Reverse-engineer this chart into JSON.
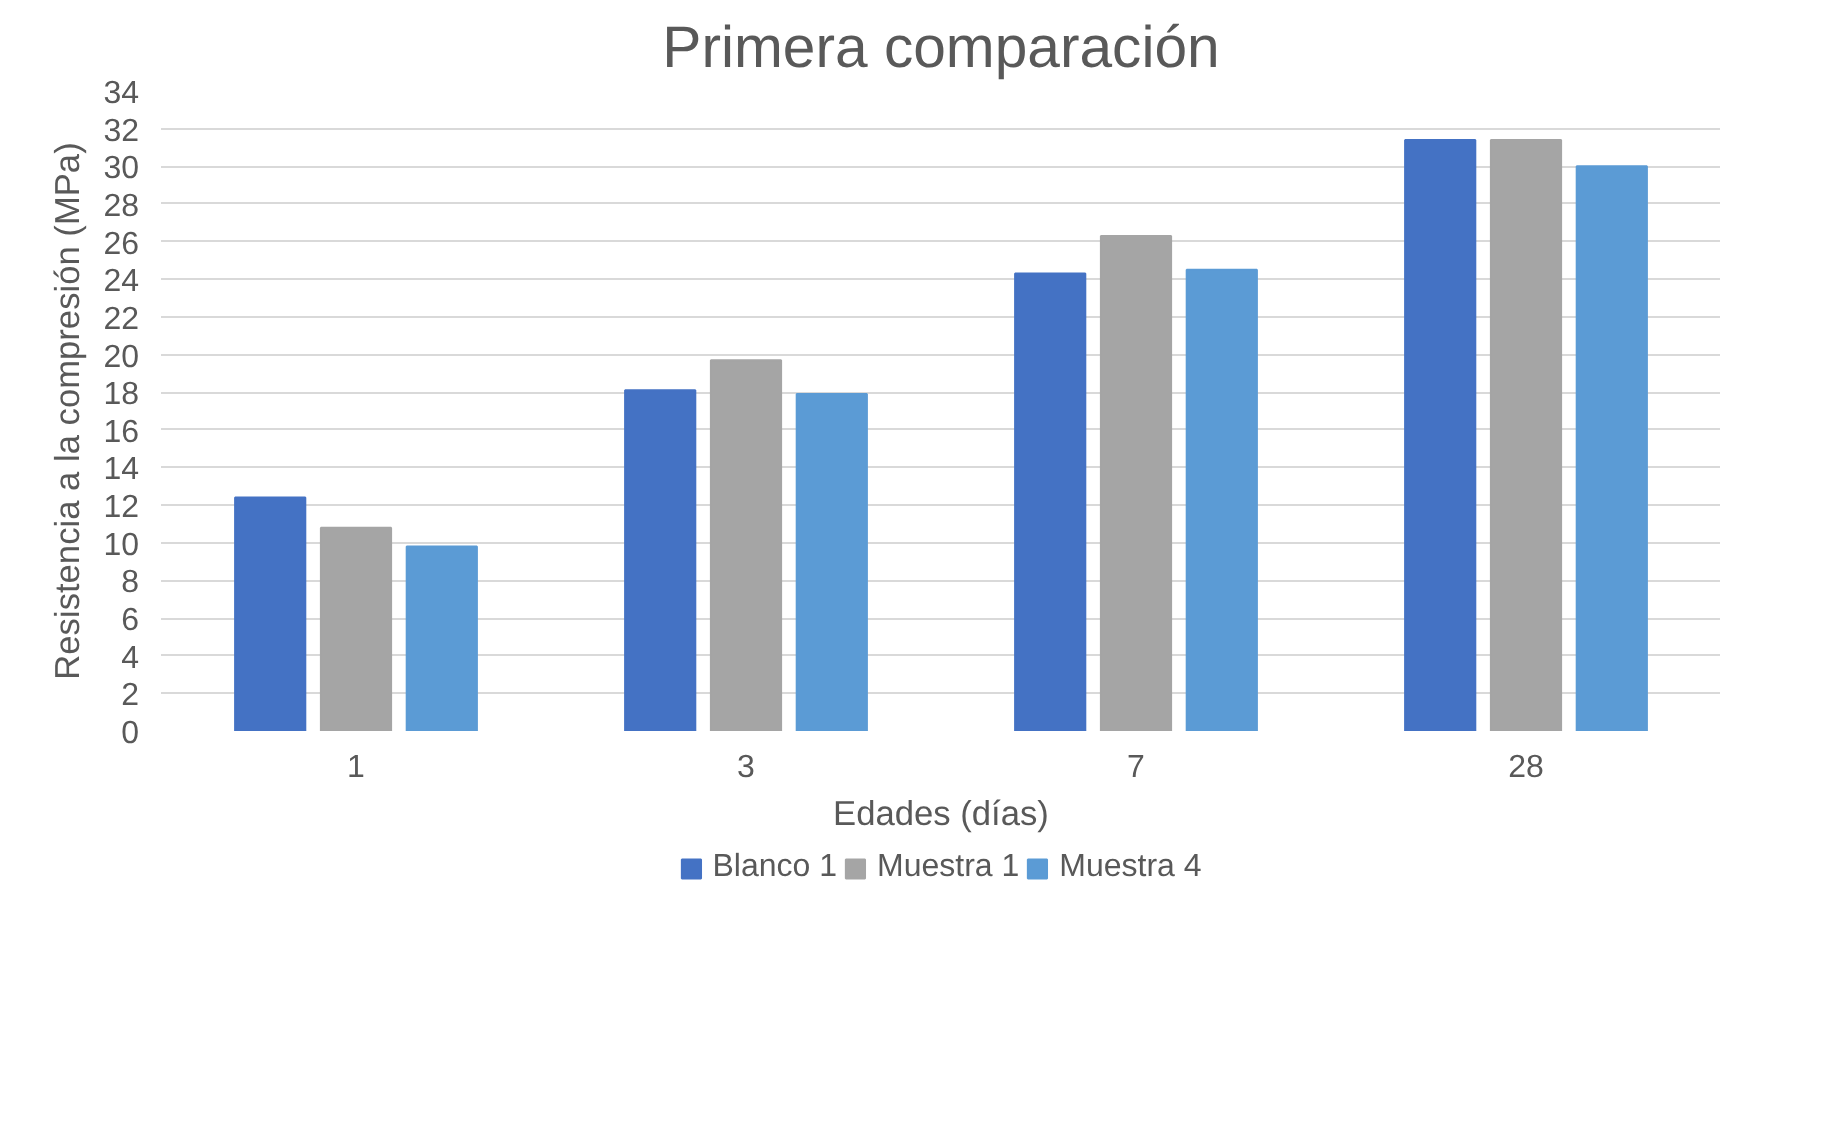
{
  "chart_data": {
    "type": "bar",
    "title": "Primera comparación",
    "xlabel": "Edades (días)",
    "ylabel": "Resistencia a la compresión (MPa)",
    "categories": [
      "1",
      "3",
      "7",
      "28"
    ],
    "series": [
      {
        "name": "Blanco 1",
        "color": "#4472c4",
        "values": [
          12.4,
          18.1,
          24.3,
          31.4
        ]
      },
      {
        "name": "Muestra 1",
        "color": "#a5a5a5",
        "values": [
          10.8,
          19.7,
          26.3,
          31.4
        ]
      },
      {
        "name": "Muestra 4",
        "color": "#5b9bd5",
        "values": [
          9.8,
          17.9,
          24.5,
          30.0
        ]
      }
    ],
    "ylim": [
      0,
      34
    ],
    "yticks": [
      0,
      2,
      4,
      6,
      8,
      10,
      12,
      14,
      16,
      18,
      20,
      22,
      24,
      26,
      28,
      30,
      32,
      34
    ],
    "grid": "y",
    "legend": "bottom"
  }
}
